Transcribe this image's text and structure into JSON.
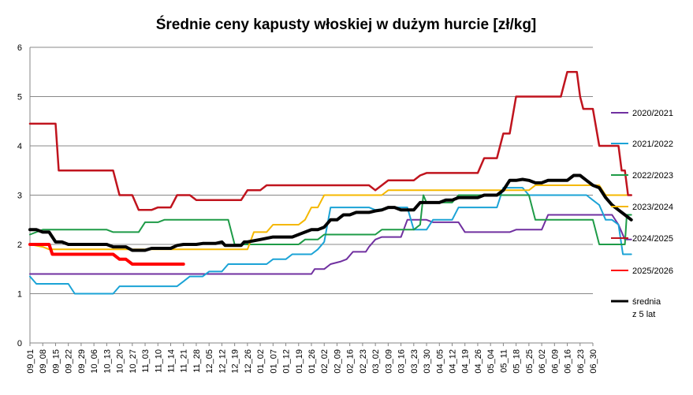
{
  "chart_data": {
    "type": "line",
    "title": "Średnie ceny kapusty włoskiej w dużym hurcie [zł/kg]",
    "xlabel": "",
    "ylabel": "",
    "ylim": [
      0,
      6
    ],
    "yticks": [
      "0",
      "1",
      "2",
      "3",
      "4",
      "5",
      "6"
    ],
    "grid": true,
    "legend_position": "right",
    "xticks": [
      "09_01",
      "09_08",
      "09_15",
      "09_22",
      "09_29",
      "10_06",
      "10_13",
      "10_20",
      "10_27",
      "11_03",
      "11_10",
      "11_14",
      "11_21",
      "11_28",
      "12_05",
      "12_12",
      "12_19",
      "12_26",
      "01_02",
      "01_07",
      "01_12",
      "01_19",
      "01_26",
      "02_02",
      "02_09",
      "02_16",
      "02_23",
      "03_02",
      "03_09",
      "03_16",
      "03_23",
      "03_30",
      "04_05",
      "04_12",
      "04_19",
      "04_26",
      "05_04",
      "05_11",
      "05_18",
      "05_25",
      "06_02",
      "06_09",
      "06_16",
      "06_23",
      "06_30"
    ],
    "series": [
      {
        "name": "2020/2021",
        "color": "#7030A0",
        "width": 2,
        "points": [
          [
            0,
            1.4
          ],
          [
            44,
            1.4
          ],
          [
            44.5,
            1.5
          ],
          [
            46,
            1.5
          ],
          [
            47,
            1.6
          ],
          [
            48.5,
            1.65
          ],
          [
            49.5,
            1.7
          ],
          [
            50.5,
            1.85
          ],
          [
            52.5,
            1.85
          ],
          [
            53,
            1.95
          ],
          [
            54,
            2.1
          ],
          [
            55,
            2.15
          ],
          [
            56,
            2.15
          ],
          [
            58,
            2.15
          ],
          [
            59,
            2.5
          ],
          [
            62,
            2.5
          ],
          [
            63,
            2.45
          ],
          [
            67,
            2.45
          ],
          [
            68,
            2.25
          ],
          [
            75,
            2.25
          ],
          [
            76,
            2.3
          ],
          [
            80,
            2.3
          ],
          [
            81,
            2.6
          ],
          [
            90,
            2.6
          ],
          [
            91,
            2.6
          ],
          [
            92,
            2.4
          ],
          [
            93,
            2.1
          ],
          [
            94,
            2.1
          ]
        ]
      },
      {
        "name": "2021/2022",
        "color": "#1BA3D6",
        "width": 2,
        "points": [
          [
            0,
            1.35
          ],
          [
            1,
            1.2
          ],
          [
            6,
            1.2
          ],
          [
            7,
            1.0
          ],
          [
            13,
            1.0
          ],
          [
            14,
            1.15
          ],
          [
            23,
            1.15
          ],
          [
            24,
            1.25
          ],
          [
            25,
            1.35
          ],
          [
            27,
            1.35
          ],
          [
            28,
            1.45
          ],
          [
            30,
            1.45
          ],
          [
            31,
            1.6
          ],
          [
            37,
            1.6
          ],
          [
            38,
            1.7
          ],
          [
            40,
            1.7
          ],
          [
            41,
            1.8
          ],
          [
            44,
            1.8
          ],
          [
            45,
            1.9
          ],
          [
            46,
            2.05
          ],
          [
            47,
            2.75
          ],
          [
            53,
            2.75
          ],
          [
            54,
            2.7
          ],
          [
            57,
            2.75
          ],
          [
            59,
            2.75
          ],
          [
            60,
            2.3
          ],
          [
            62,
            2.3
          ],
          [
            63,
            2.5
          ],
          [
            66,
            2.5
          ],
          [
            67,
            2.75
          ],
          [
            73,
            2.75
          ],
          [
            74,
            3.15
          ],
          [
            77,
            3.15
          ],
          [
            78,
            3.0
          ],
          [
            87,
            3.0
          ],
          [
            88,
            2.9
          ],
          [
            89,
            2.8
          ],
          [
            90,
            2.5
          ],
          [
            91,
            2.5
          ],
          [
            92,
            2.4
          ],
          [
            92.7,
            1.8
          ],
          [
            94,
            1.8
          ]
        ]
      },
      {
        "name": "2022/2023",
        "color": "#1E9B47",
        "width": 2,
        "points": [
          [
            0,
            2.2
          ],
          [
            2,
            2.3
          ],
          [
            12,
            2.3
          ],
          [
            13,
            2.25
          ],
          [
            17,
            2.25
          ],
          [
            18,
            2.45
          ],
          [
            20,
            2.45
          ],
          [
            21,
            2.5
          ],
          [
            27,
            2.5
          ],
          [
            28,
            2.5
          ],
          [
            31,
            2.5
          ],
          [
            32,
            2.0
          ],
          [
            42,
            2.0
          ],
          [
            43,
            2.1
          ],
          [
            45,
            2.1
          ],
          [
            46,
            2.2
          ],
          [
            54,
            2.2
          ],
          [
            55,
            2.3
          ],
          [
            60,
            2.3
          ],
          [
            61,
            2.4
          ],
          [
            61.5,
            3.0
          ],
          [
            62,
            2.85
          ],
          [
            66,
            2.85
          ],
          [
            67,
            3.0
          ],
          [
            78,
            3.0
          ],
          [
            79,
            2.5
          ],
          [
            88,
            2.5
          ],
          [
            89,
            2.0
          ],
          [
            93,
            2.0
          ],
          [
            93.3,
            2.6
          ],
          [
            94,
            2.6
          ]
        ]
      },
      {
        "name": "2023/2024",
        "color": "#F5B800",
        "width": 2,
        "points": [
          [
            0,
            2.0
          ],
          [
            2,
            1.95
          ],
          [
            3,
            1.9
          ],
          [
            34,
            1.9
          ],
          [
            35,
            2.25
          ],
          [
            37,
            2.25
          ],
          [
            38,
            2.4
          ],
          [
            42,
            2.4
          ],
          [
            43,
            2.5
          ],
          [
            44,
            2.75
          ],
          [
            45,
            2.75
          ],
          [
            46,
            3.0
          ],
          [
            55,
            3.0
          ],
          [
            56,
            3.1
          ],
          [
            78,
            3.1
          ],
          [
            79,
            3.2
          ],
          [
            89,
            3.2
          ],
          [
            90,
            3.0
          ],
          [
            94,
            3.0
          ]
        ]
      },
      {
        "name": "2024/2025",
        "color": "#C0141E",
        "width": 2.5,
        "points": [
          [
            0,
            4.45
          ],
          [
            4,
            4.45
          ],
          [
            4.5,
            3.5
          ],
          [
            13,
            3.5
          ],
          [
            14,
            3.0
          ],
          [
            16,
            3.0
          ],
          [
            17,
            2.7
          ],
          [
            19,
            2.7
          ],
          [
            20,
            2.75
          ],
          [
            22,
            2.75
          ],
          [
            23,
            3.0
          ],
          [
            25,
            3.0
          ],
          [
            26,
            2.9
          ],
          [
            33,
            2.9
          ],
          [
            34,
            3.1
          ],
          [
            36,
            3.1
          ],
          [
            37,
            3.2
          ],
          [
            53,
            3.2
          ],
          [
            54,
            3.1
          ],
          [
            55,
            3.2
          ],
          [
            56,
            3.3
          ],
          [
            60,
            3.3
          ],
          [
            61,
            3.4
          ],
          [
            62,
            3.45
          ],
          [
            70,
            3.45
          ],
          [
            71,
            3.75
          ],
          [
            73,
            3.75
          ],
          [
            74,
            4.25
          ],
          [
            75,
            4.25
          ],
          [
            76,
            5.0
          ],
          [
            83,
            5.0
          ],
          [
            84,
            5.5
          ],
          [
            85.5,
            5.5
          ],
          [
            86,
            5.0
          ],
          [
            86.5,
            4.75
          ],
          [
            88,
            4.75
          ],
          [
            89,
            4.0
          ],
          [
            92,
            4.0
          ],
          [
            92.5,
            3.5
          ],
          [
            93,
            3.5
          ],
          [
            93.5,
            3.0
          ],
          [
            94,
            3.0
          ]
        ]
      },
      {
        "name": "2025/2026",
        "color": "#FF0000",
        "width": 4,
        "points": [
          [
            0,
            2.0
          ],
          [
            3,
            2.0
          ],
          [
            3.5,
            1.8
          ],
          [
            13,
            1.8
          ],
          [
            14,
            1.7
          ],
          [
            15,
            1.7
          ],
          [
            16,
            1.6
          ],
          [
            24,
            1.6
          ]
        ]
      },
      {
        "name": "średnia z 5 lat",
        "color": "#000000",
        "width": 4,
        "points": [
          [
            0,
            2.3
          ],
          [
            1,
            2.3
          ],
          [
            2,
            2.25
          ],
          [
            3,
            2.25
          ],
          [
            4,
            2.05
          ],
          [
            5,
            2.05
          ],
          [
            6,
            2.0
          ],
          [
            12,
            2.0
          ],
          [
            13,
            1.95
          ],
          [
            15,
            1.95
          ],
          [
            16,
            1.88
          ],
          [
            18,
            1.88
          ],
          [
            19,
            1.92
          ],
          [
            22,
            1.92
          ],
          [
            23,
            1.98
          ],
          [
            24,
            2.0
          ],
          [
            25,
            2.0
          ],
          [
            26,
            2.0
          ],
          [
            27,
            2.02
          ],
          [
            29,
            2.02
          ],
          [
            30,
            2.05
          ],
          [
            30.5,
            1.98
          ],
          [
            33,
            1.98
          ],
          [
            33.5,
            2.05
          ],
          [
            34,
            2.05
          ],
          [
            36,
            2.1
          ],
          [
            38,
            2.15
          ],
          [
            41,
            2.15
          ],
          [
            42,
            2.2
          ],
          [
            43,
            2.25
          ],
          [
            44,
            2.3
          ],
          [
            45,
            2.3
          ],
          [
            46,
            2.35
          ],
          [
            47,
            2.5
          ],
          [
            48,
            2.5
          ],
          [
            49,
            2.6
          ],
          [
            50,
            2.6
          ],
          [
            51,
            2.65
          ],
          [
            53,
            2.65
          ],
          [
            54,
            2.68
          ],
          [
            55,
            2.7
          ],
          [
            56,
            2.75
          ],
          [
            57,
            2.75
          ],
          [
            58,
            2.7
          ],
          [
            60,
            2.7
          ],
          [
            61,
            2.85
          ],
          [
            64,
            2.85
          ],
          [
            65,
            2.9
          ],
          [
            66,
            2.9
          ],
          [
            67,
            2.95
          ],
          [
            70,
            2.95
          ],
          [
            71,
            3.0
          ],
          [
            73,
            3.0
          ],
          [
            74,
            3.1
          ],
          [
            75,
            3.3
          ],
          [
            76,
            3.3
          ],
          [
            77,
            3.32
          ],
          [
            78,
            3.3
          ],
          [
            79,
            3.25
          ],
          [
            80,
            3.25
          ],
          [
            81,
            3.3
          ],
          [
            84,
            3.3
          ],
          [
            85,
            3.4
          ],
          [
            86,
            3.4
          ],
          [
            87,
            3.3
          ],
          [
            88,
            3.2
          ],
          [
            89,
            3.15
          ],
          [
            90,
            2.95
          ],
          [
            91,
            2.8
          ],
          [
            92,
            2.7
          ],
          [
            93,
            2.6
          ],
          [
            94,
            2.5
          ]
        ]
      }
    ],
    "legend": [
      "2020/2021",
      "2021/2022",
      "2022/2023",
      "2023/2024",
      "2024/2025",
      "2025/2026",
      "średnia",
      "z 5 lat"
    ]
  }
}
